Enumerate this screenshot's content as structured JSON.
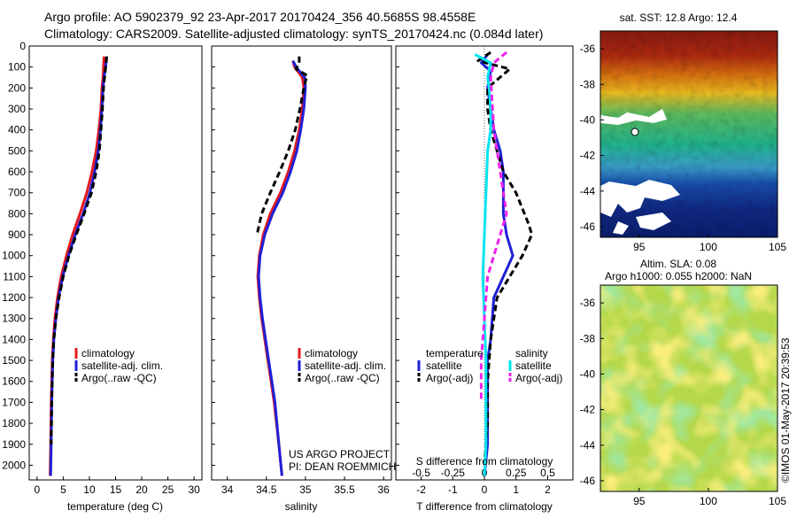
{
  "header": {
    "line1": "Argo profile: AO 5902379_92 23-Apr-2017 20170424_356 40.5685S 98.4558E",
    "line2": "Climatology: CARS2009. Satellite-adjusted climatology: synTS_20170424.nc (0.084d later)"
  },
  "colors": {
    "climatology": "#e41a1c",
    "satellite": "#1f1fd6",
    "argo": "#000000",
    "sat_salinity": "#00e5ee",
    "argo_salinity": "#ee22ee"
  },
  "y_axis": {
    "ticks": [
      0,
      100,
      200,
      300,
      400,
      500,
      600,
      700,
      800,
      900,
      1000,
      1100,
      1200,
      1300,
      1400,
      1500,
      1600,
      1700,
      1800,
      1900,
      2000
    ]
  },
  "chart_data": [
    {
      "type": "line",
      "xlabel": "temperature (deg C)",
      "xlim": [
        -1.5,
        31.5
      ],
      "ylim": [
        2070,
        0
      ],
      "xticks": [
        0,
        5,
        10,
        15,
        20,
        25,
        30
      ],
      "series": [
        {
          "name": "climatology",
          "color": "#e41a1c",
          "style": "solid",
          "x": [
            12.8,
            12.7,
            12.6,
            12.4,
            12.2,
            11.8,
            11.3,
            10.5,
            9.5,
            8.2,
            6.8,
            5.6,
            4.6,
            3.9,
            3.4,
            3.1,
            2.9,
            2.8,
            2.7,
            2.6,
            2.5
          ],
          "y": [
            50,
            100,
            150,
            200,
            300,
            400,
            500,
            600,
            700,
            800,
            900,
            1000,
            1100,
            1200,
            1300,
            1400,
            1500,
            1600,
            1700,
            1900,
            2050
          ]
        },
        {
          "name": "satellite-adj. clim.",
          "color": "#1f1fd6",
          "style": "solid",
          "x": [
            13.3,
            13.1,
            12.8,
            12.6,
            12.4,
            12.1,
            11.7,
            11.0,
            10.1,
            8.8,
            7.3,
            6.0,
            4.9,
            4.1,
            3.6,
            3.2,
            3.0,
            2.9,
            2.8,
            2.7,
            2.6
          ],
          "y": [
            50,
            100,
            150,
            200,
            300,
            400,
            500,
            600,
            700,
            800,
            900,
            1000,
            1100,
            1200,
            1300,
            1400,
            1500,
            1600,
            1700,
            1900,
            2050
          ]
        },
        {
          "name": "Argo(..raw -QC)",
          "color": "#000000",
          "style": "dashed",
          "x": [
            13.3,
            13.1,
            12.9,
            12.7,
            12.5,
            12.2,
            11.9,
            11.3,
            10.4,
            9.0,
            7.5,
            6.1,
            5.0,
            4.2,
            3.6,
            3.2,
            3.0,
            2.9,
            2.8,
            2.7
          ],
          "y": [
            50,
            100,
            150,
            200,
            300,
            400,
            500,
            600,
            700,
            800,
            900,
            1000,
            1100,
            1200,
            1300,
            1400,
            1500,
            1600,
            1700,
            1900
          ]
        }
      ]
    },
    {
      "type": "line",
      "xlabel": "salinity",
      "xlim": [
        33.8,
        36.1
      ],
      "ylim": [
        2070,
        0
      ],
      "xticks": [
        34,
        34.5,
        35,
        35.5,
        36
      ],
      "series": [
        {
          "name": "climatology",
          "color": "#e41a1c",
          "style": "solid",
          "x": [
            34.84,
            34.86,
            34.96,
            34.98,
            34.96,
            34.92,
            34.86,
            34.78,
            34.68,
            34.55,
            34.46,
            34.41,
            34.39,
            34.41,
            34.44,
            34.48,
            34.52,
            34.56,
            34.6,
            34.66,
            34.7
          ],
          "y": [
            70,
            100,
            150,
            200,
            300,
            400,
            500,
            600,
            700,
            800,
            900,
            1000,
            1100,
            1200,
            1300,
            1400,
            1500,
            1600,
            1700,
            1900,
            2050
          ]
        },
        {
          "name": "satellite-adj. clim.",
          "color": "#1f1fd6",
          "style": "solid",
          "x": [
            34.84,
            34.88,
            34.99,
            35.0,
            34.98,
            34.94,
            34.89,
            34.81,
            34.71,
            34.58,
            34.48,
            34.42,
            34.4,
            34.42,
            34.45,
            34.49,
            34.53,
            34.57,
            34.61,
            34.66,
            34.7
          ],
          "y": [
            70,
            100,
            150,
            200,
            300,
            400,
            500,
            600,
            700,
            800,
            900,
            1000,
            1100,
            1200,
            1300,
            1400,
            1500,
            1600,
            1700,
            1900,
            2050
          ]
        },
        {
          "name": "Argo(..raw -QC)",
          "color": "#000000",
          "style": "dashed",
          "x": [
            34.92,
            34.92,
            34.88,
            35.02,
            34.98,
            34.93,
            34.87,
            34.78,
            34.67,
            34.55,
            34.44,
            34.38
          ],
          "y": [
            50,
            80,
            110,
            140,
            200,
            300,
            400,
            500,
            600,
            700,
            800,
            900
          ]
        }
      ]
    },
    {
      "type": "line",
      "xlabel": "T difference from climatology",
      "xlabel_top": "S difference from climatology",
      "xlim": [
        -2.8,
        2.8
      ],
      "ylim": [
        2070,
        0
      ],
      "xticks": [
        -2,
        -1,
        0,
        1,
        2
      ],
      "xticks_top": [
        "-0.5",
        "-0.25",
        "0",
        "0.25",
        "0.5"
      ],
      "series": [
        {
          "name": "temperature satellite",
          "color": "#1f1fd6",
          "style": "solid",
          "x": [
            0.1,
            -0.1,
            0.2,
            0.1,
            0.2,
            0.3,
            0.5,
            0.6,
            0.6,
            0.6,
            0.7,
            0.9,
            0.6,
            0.3,
            0.2,
            0.1,
            0.1,
            0.1,
            0.1,
            0.0
          ],
          "y": [
            40,
            80,
            120,
            200,
            300,
            400,
            500,
            600,
            700,
            800,
            900,
            1000,
            1100,
            1200,
            1400,
            1500,
            1600,
            1700,
            1900,
            2050
          ]
        },
        {
          "name": "temperature Argo(-adj)",
          "color": "#000000",
          "style": "dashed",
          "x": [
            0.2,
            -0.2,
            0.8,
            0.1,
            0.1,
            0.2,
            0.4,
            0.6,
            1.0,
            1.4,
            1.5,
            1.2,
            0.8,
            0.4,
            0.2,
            0.1,
            0.1,
            0.0
          ],
          "y": [
            30,
            70,
            110,
            200,
            300,
            400,
            500,
            600,
            700,
            850,
            900,
            1000,
            1100,
            1200,
            1400,
            1600,
            1800,
            2000
          ]
        },
        {
          "name": "salinity satellite",
          "color": "#00e5ee",
          "style": "solid",
          "x": [
            -0.3,
            0.2,
            0.1,
            0.15,
            0.2,
            0.2,
            0.1,
            0.05,
            0.0,
            -0.05,
            0.0,
            0.05,
            0.05,
            0.05,
            0.0
          ],
          "y": [
            40,
            80,
            150,
            200,
            300,
            400,
            500,
            700,
            900,
            1100,
            1300,
            1500,
            1700,
            1900,
            2050
          ]
        },
        {
          "name": "salinity Argo(-adj)",
          "color": "#ee22ee",
          "style": "dashed",
          "x": [
            0.7,
            0.3,
            0.2,
            0.3,
            0.5,
            0.7,
            0.5,
            0.3,
            0.1,
            0.0,
            -0.1,
            -0.1
          ],
          "y": [
            30,
            80,
            150,
            400,
            600,
            800,
            900,
            1000,
            1100,
            1300,
            1500,
            1700
          ]
        }
      ]
    }
  ],
  "panels": {
    "temperature": {
      "legend": [
        "climatology",
        "satellite-adj. clim.",
        "Argo(..raw -QC)"
      ]
    },
    "salinity": {
      "legend": [
        "climatology",
        "satellite-adj. clim.",
        "Argo(..raw -QC)"
      ],
      "note1": "US ARGO PROJECT",
      "note2": "PI: DEAN ROEMMICH"
    },
    "difference": {
      "legend_head_left": "temperature",
      "legend_head_right": "salinity",
      "legend_left": [
        "satellite",
        "Argo(-adj)"
      ],
      "legend_right": [
        "satellite",
        "Argo(-adj)"
      ]
    }
  },
  "maps": {
    "sst": {
      "title": "sat. SST: 12.8  Argo: 12.4",
      "yticks": [
        "-36",
        "-38",
        "-40",
        "-42",
        "-44",
        "-46"
      ],
      "xticks": [
        "95",
        "100",
        "105"
      ]
    },
    "sla": {
      "title1": "Altim. SLA: 0.08",
      "title2": "Argo h1000: 0.055  h2000: NaN",
      "yticks": [
        "-36",
        "-38",
        "-40",
        "-42",
        "-44",
        "-46"
      ],
      "xticks": [
        "95",
        "100",
        "105"
      ]
    }
  },
  "credit": "©IMOS 01-May-2017 20:39:53"
}
